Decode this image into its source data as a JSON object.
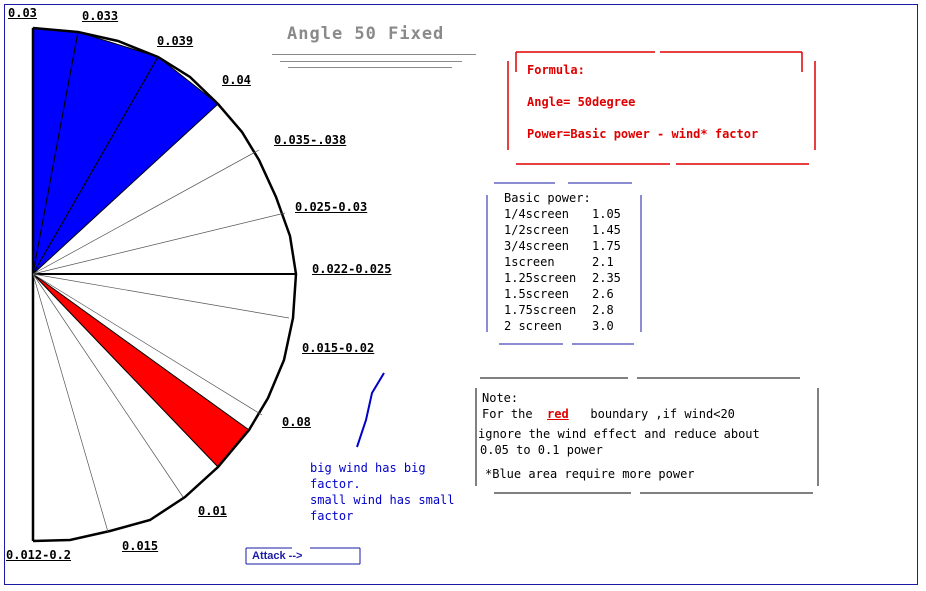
{
  "title": "Angle 50 Fixed",
  "wedge_labels": {
    "l0": "0.03",
    "l1": "0.033",
    "l2": "0.039",
    "l3": "0.04",
    "l4": "0.035-.038",
    "l5": "0.025-0.03",
    "l6": "0.022-0.025",
    "l7": "0.015-0.02",
    "l8": "0.08",
    "l9": "0.01",
    "l10": "0.015",
    "l11": "0.012-0.2"
  },
  "formula": {
    "heading": "Formula:",
    "angle": "Angle= 50degree",
    "power": "Power=Basic power - wind* factor"
  },
  "basic_power": {
    "heading": "Basic power:",
    "rows": [
      {
        "distance": "1/4screen",
        "value": "1.05"
      },
      {
        "distance": "1/2screen",
        "value": "1.45"
      },
      {
        "distance": "3/4screen",
        "value": "1.75"
      },
      {
        "distance": "1screen",
        "value": "2.1"
      },
      {
        "distance": "1.25screen",
        "value": "2.35"
      },
      {
        "distance": "1.5screen",
        "value": "2.6"
      },
      {
        "distance": "1.75screen",
        "value": "2.8"
      },
      {
        "distance": "2 screen",
        "value": "3.0"
      }
    ]
  },
  "wind_note": {
    "line1": "big wind has big",
    "line2": "factor.",
    "line3": "small wind has small",
    "line4": "factor"
  },
  "note": {
    "heading": "Note:",
    "line1_prefix": "For the",
    "line1_red": "red",
    "line1_suffix": "boundary ,if wind<20",
    "line2": "ignore the wind effect and reduce about",
    "line3": "0.05 to 0.1 power",
    "line4": "*Blue area require more power"
  },
  "attack_button": "Attack -->",
  "colors": {
    "blue_area": "#0000ff",
    "red_boundary": "#ff0000",
    "title_gray": "#8a8a8a",
    "formula_red": "#e00000",
    "wind_text": "#0000c8",
    "frame": "#1a1aa6"
  }
}
